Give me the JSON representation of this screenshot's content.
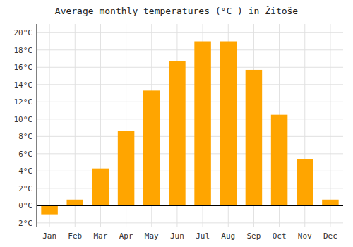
{
  "chart_data": {
    "type": "bar",
    "title": "Average monthly temperatures (°C ) in Žitoše",
    "categories": [
      "Jan",
      "Feb",
      "Mar",
      "Apr",
      "May",
      "Jun",
      "Jul",
      "Aug",
      "Sep",
      "Oct",
      "Nov",
      "Dec"
    ],
    "values": [
      -1.0,
      0.7,
      4.3,
      8.6,
      13.3,
      16.7,
      19.0,
      19.0,
      15.7,
      10.5,
      5.4,
      0.7
    ],
    "color": "#FFA500",
    "ylim": [
      -2.5,
      21
    ],
    "yticks": [
      {
        "value": -2,
        "label": "-2°C"
      },
      {
        "value": 0,
        "label": "0°C"
      },
      {
        "value": 2,
        "label": "2°C"
      },
      {
        "value": 4,
        "label": "4°C"
      },
      {
        "value": 6,
        "label": "6°C"
      },
      {
        "value": 8,
        "label": "8°C"
      },
      {
        "value": 10,
        "label": "10°C"
      },
      {
        "value": 12,
        "label": "12°C"
      },
      {
        "value": 14,
        "label": "14°C"
      },
      {
        "value": 16,
        "label": "16°C"
      },
      {
        "value": 18,
        "label": "18°C"
      },
      {
        "value": 20,
        "label": "20°C"
      }
    ],
    "grid": true
  }
}
